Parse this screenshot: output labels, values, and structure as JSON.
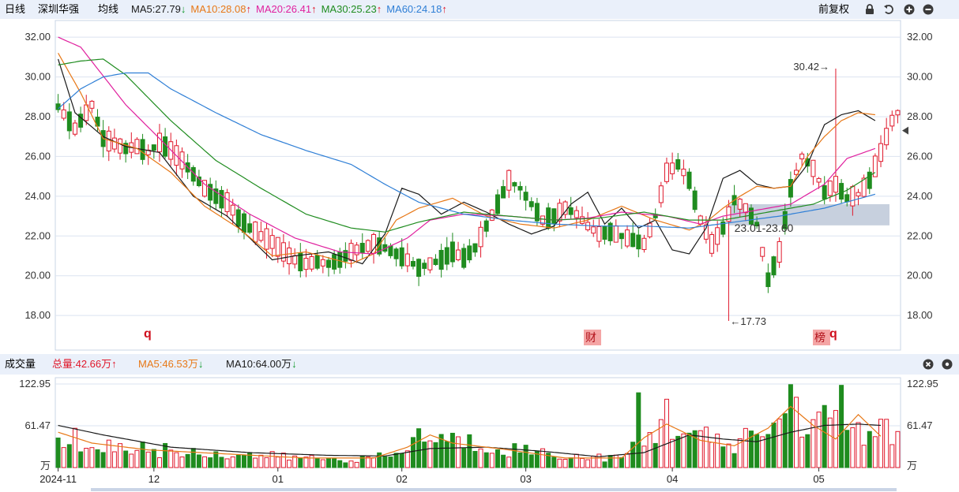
{
  "header": {
    "period": "日线",
    "stock": "深圳华强",
    "avg": "均线",
    "ma": [
      {
        "label": "MA5:27.79",
        "arrow": "down",
        "color": "#1a1a1a"
      },
      {
        "label": "MA10:28.08",
        "arrow": "up",
        "color": "#e77817"
      },
      {
        "label": "MA20:26.41",
        "arrow": "up",
        "color": "#e0209e"
      },
      {
        "label": "MA30:25.23",
        "arrow": "up",
        "color": "#1f8c1f"
      },
      {
        "label": "MA60:24.18",
        "arrow": "up",
        "color": "#2f7fd6"
      }
    ],
    "adjust": "前复权",
    "icons": [
      "lock-icon",
      "undo-icon",
      "zoom-in-icon",
      "zoom-out-icon"
    ]
  },
  "volume_header": {
    "title": "成交量",
    "total": "总量:42.66万",
    "ma5": "MA5:46.53万",
    "ma10": "MA10:64.00万",
    "icons": [
      "close-icon",
      "settings-icon"
    ]
  },
  "chart_data": [
    {
      "type": "candlestick",
      "yticks": [
        "32.00",
        "30.00",
        "28.00",
        "26.00",
        "24.00",
        "22.00",
        "20.00",
        "18.00"
      ],
      "ylim": [
        16.5,
        32.6
      ],
      "annotations": {
        "high": "30.42→",
        "low": "←17.73",
        "zone": "23.01-23.60"
      },
      "markers": {
        "q1": "q",
        "cai": "财",
        "bang": "榜",
        "q2": "q"
      },
      "series": [
        {
          "name": "MA5",
          "color": "#1a1a1a"
        },
        {
          "name": "MA10",
          "color": "#e77817"
        },
        {
          "name": "MA20",
          "color": "#e0209e"
        },
        {
          "name": "MA30",
          "color": "#1f8c1f"
        },
        {
          "name": "MA60",
          "color": "#2f7fd6"
        }
      ],
      "anchors": {
        "MA5": [
          [
            0,
            30.9
          ],
          [
            3,
            28.2
          ],
          [
            8,
            27.0
          ],
          [
            12,
            26.5
          ],
          [
            18,
            26.2
          ],
          [
            24,
            24.0
          ],
          [
            30,
            23.0
          ],
          [
            34,
            21.9
          ],
          [
            38,
            20.8
          ],
          [
            42,
            21.0
          ],
          [
            48,
            21.2
          ],
          [
            54,
            20.6
          ],
          [
            58,
            22.1
          ],
          [
            61,
            24.4
          ],
          [
            64,
            24.1
          ],
          [
            68,
            23.1
          ],
          [
            72,
            23.7
          ],
          [
            76,
            23.2
          ],
          [
            80,
            22.6
          ],
          [
            84,
            22.1
          ],
          [
            88,
            22.5
          ],
          [
            91,
            23.6
          ],
          [
            94,
            24.2
          ],
          [
            97,
            22.6
          ],
          [
            100,
            23.4
          ],
          [
            103,
            22.4
          ],
          [
            106,
            22.8
          ],
          [
            109,
            21.3
          ],
          [
            112,
            21.1
          ],
          [
            115,
            22.4
          ],
          [
            118,
            24.9
          ],
          [
            121,
            25.3
          ],
          [
            124,
            24.6
          ],
          [
            127,
            24.4
          ],
          [
            130,
            24.5
          ],
          [
            133,
            25.6
          ],
          [
            136,
            27.6
          ],
          [
            139,
            28.1
          ],
          [
            142,
            28.3
          ],
          [
            145,
            27.8
          ]
        ],
        "MA10": [
          [
            0,
            31.2
          ],
          [
            4,
            29.2
          ],
          [
            8,
            26.9
          ],
          [
            14,
            26.4
          ],
          [
            20,
            25.2
          ],
          [
            26,
            23.5
          ],
          [
            32,
            22.4
          ],
          [
            38,
            21.0
          ],
          [
            44,
            21.2
          ],
          [
            52,
            20.6
          ],
          [
            56,
            21.1
          ],
          [
            60,
            22.8
          ],
          [
            64,
            23.4
          ],
          [
            70,
            23.9
          ],
          [
            76,
            23.0
          ],
          [
            82,
            22.6
          ],
          [
            88,
            22.4
          ],
          [
            94,
            22.8
          ],
          [
            100,
            23.5
          ],
          [
            106,
            22.8
          ],
          [
            112,
            22.3
          ],
          [
            115,
            22.7
          ],
          [
            118,
            23.4
          ],
          [
            121,
            24.0
          ],
          [
            124,
            24.5
          ],
          [
            127,
            24.4
          ],
          [
            130,
            24.5
          ],
          [
            133,
            26.0
          ],
          [
            136,
            27.0
          ],
          [
            139,
            27.8
          ],
          [
            142,
            28.2
          ],
          [
            145,
            28.1
          ]
        ],
        "MA20": [
          [
            0,
            32.0
          ],
          [
            4,
            31.5
          ],
          [
            12,
            28.6
          ],
          [
            18,
            26.9
          ],
          [
            26,
            24.6
          ],
          [
            34,
            23.1
          ],
          [
            42,
            21.9
          ],
          [
            50,
            21.2
          ],
          [
            56,
            21.1
          ],
          [
            62,
            21.9
          ],
          [
            66,
            22.8
          ],
          [
            72,
            23.1
          ],
          [
            80,
            23.0
          ],
          [
            88,
            22.8
          ],
          [
            94,
            22.9
          ],
          [
            100,
            23.2
          ],
          [
            108,
            23.0
          ],
          [
            114,
            22.6
          ],
          [
            118,
            23.0
          ],
          [
            124,
            23.3
          ],
          [
            130,
            23.6
          ],
          [
            136,
            24.6
          ],
          [
            140,
            25.9
          ],
          [
            145,
            26.4
          ]
        ],
        "MA30": [
          [
            0,
            30.6
          ],
          [
            4,
            30.8
          ],
          [
            8,
            30.9
          ],
          [
            12,
            30.1
          ],
          [
            20,
            27.8
          ],
          [
            28,
            25.8
          ],
          [
            36,
            24.4
          ],
          [
            44,
            23.1
          ],
          [
            52,
            22.4
          ],
          [
            58,
            22.2
          ],
          [
            64,
            22.7
          ],
          [
            72,
            23.2
          ],
          [
            80,
            23.0
          ],
          [
            88,
            22.8
          ],
          [
            96,
            22.9
          ],
          [
            104,
            23.2
          ],
          [
            112,
            22.8
          ],
          [
            118,
            22.8
          ],
          [
            126,
            23.2
          ],
          [
            134,
            23.6
          ],
          [
            140,
            24.3
          ],
          [
            145,
            25.2
          ]
        ],
        "MA60": [
          [
            0,
            28.4
          ],
          [
            4,
            29.4
          ],
          [
            8,
            30.0
          ],
          [
            12,
            30.2
          ],
          [
            16,
            30.2
          ],
          [
            20,
            29.4
          ],
          [
            28,
            28.2
          ],
          [
            36,
            27.1
          ],
          [
            44,
            26.3
          ],
          [
            52,
            25.6
          ],
          [
            58,
            24.6
          ],
          [
            64,
            23.7
          ],
          [
            72,
            23.1
          ],
          [
            80,
            22.8
          ],
          [
            88,
            22.6
          ],
          [
            96,
            22.5
          ],
          [
            104,
            22.5
          ],
          [
            112,
            22.4
          ],
          [
            120,
            22.7
          ],
          [
            128,
            23.0
          ],
          [
            136,
            23.4
          ],
          [
            145,
            24.1
          ]
        ]
      },
      "candle_path": [
        [
          0,
          28.5
        ],
        [
          3,
          27.4
        ],
        [
          6,
          28.6
        ],
        [
          8,
          26.9
        ],
        [
          12,
          26.4
        ],
        [
          14,
          26.5
        ],
        [
          16,
          26.2
        ],
        [
          18,
          26.7
        ],
        [
          20,
          26.3
        ],
        [
          22,
          25.8
        ],
        [
          24,
          25.1
        ],
        [
          26,
          24.4
        ],
        [
          28,
          24.0
        ],
        [
          30,
          23.7
        ],
        [
          32,
          22.9
        ],
        [
          34,
          22.4
        ],
        [
          36,
          22.0
        ],
        [
          38,
          21.7
        ],
        [
          40,
          21.2
        ],
        [
          42,
          20.8
        ],
        [
          44,
          20.6
        ],
        [
          46,
          20.7
        ],
        [
          48,
          20.6
        ],
        [
          50,
          20.8
        ],
        [
          52,
          21.2
        ],
        [
          54,
          21.4
        ],
        [
          56,
          21.6
        ],
        [
          58,
          21.4
        ],
        [
          60,
          21.1
        ],
        [
          62,
          20.8
        ],
        [
          64,
          20.4
        ],
        [
          66,
          20.6
        ],
        [
          68,
          20.8
        ],
        [
          70,
          21.2
        ],
        [
          72,
          20.9
        ],
        [
          74,
          21.4
        ],
        [
          76,
          22.5
        ],
        [
          78,
          23.6
        ],
        [
          80,
          24.8
        ],
        [
          82,
          24.4
        ],
        [
          84,
          23.6
        ],
        [
          86,
          22.8
        ],
        [
          88,
          23.0
        ],
        [
          90,
          23.4
        ],
        [
          92,
          23.1
        ],
        [
          94,
          22.5
        ],
        [
          96,
          22.1
        ],
        [
          98,
          22.2
        ],
        [
          100,
          22.0
        ],
        [
          104,
          21.6
        ],
        [
          106,
          23.0
        ],
        [
          108,
          25.2
        ],
        [
          110,
          25.6
        ],
        [
          112,
          24.8
        ],
        [
          114,
          22.8
        ],
        [
          116,
          21.6
        ],
        [
          118,
          22.4
        ],
        [
          120,
          23.8
        ],
        [
          122,
          23.4
        ],
        [
          124,
          22.6
        ],
        [
          126,
          19.8
        ],
        [
          128,
          21.2
        ],
        [
          130,
          24.4
        ],
        [
          132,
          26.0
        ],
        [
          134,
          25.4
        ],
        [
          136,
          24.2
        ],
        [
          138,
          24.6
        ],
        [
          140,
          23.9
        ],
        [
          142,
          24.1
        ],
        [
          144,
          24.8
        ],
        [
          146,
          26.2
        ],
        [
          148,
          27.8
        ],
        [
          150,
          28.6
        ],
        [
          152,
          28.2
        ],
        [
          154,
          28.1
        ],
        [
          156,
          27.8
        ],
        [
          158,
          27.2
        ]
      ],
      "volume": {
        "yticks": [
          "122.95",
          "61.47"
        ],
        "unit": "万",
        "ylim": [
          0,
          122.95
        ],
        "xticks": [
          {
            "label": "2024-11",
            "i": 0
          },
          {
            "label": "12",
            "i": 17
          },
          {
            "label": "01",
            "i": 39
          },
          {
            "label": "02",
            "i": 61
          },
          {
            "label": "03",
            "i": 83
          },
          {
            "label": "04",
            "i": 109
          },
          {
            "label": "05",
            "i": 135
          }
        ]
      }
    }
  ]
}
